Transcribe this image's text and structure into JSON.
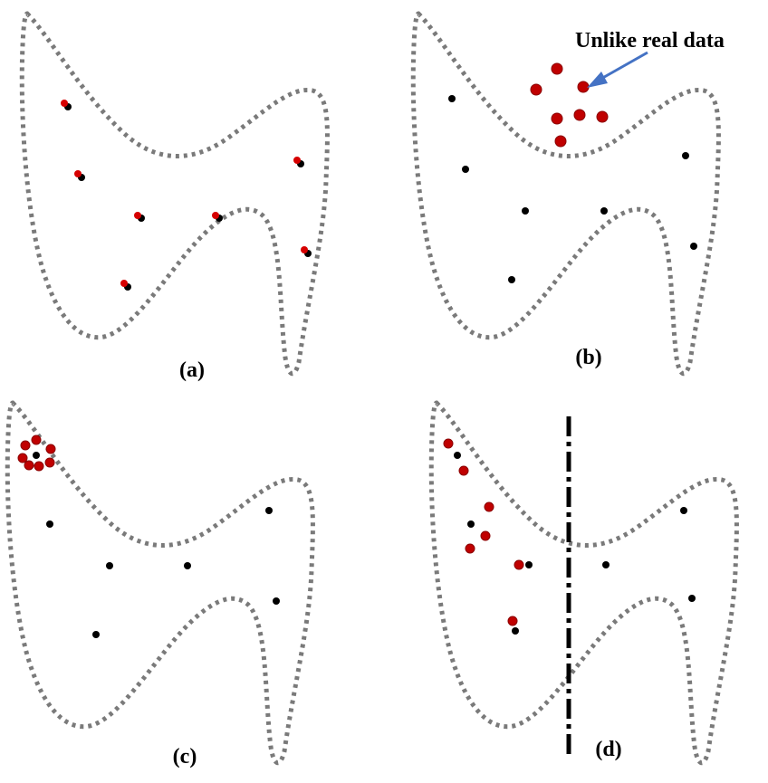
{
  "panels": [
    {
      "id": "a",
      "label": "(a)"
    },
    {
      "id": "b",
      "label": "(b)",
      "annotation": "Unlike real data"
    },
    {
      "id": "c",
      "label": "(c)"
    },
    {
      "id": "d",
      "label": "(d)"
    }
  ],
  "colors": {
    "outline": "#7a7a7a",
    "real_point": "#000000",
    "generated_point": "#d60000",
    "arrow": "#4472c4",
    "divider": "#000000"
  }
}
